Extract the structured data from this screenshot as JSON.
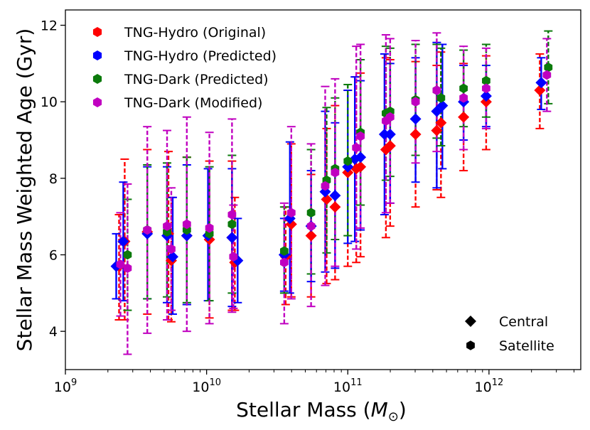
{
  "chart_data": {
    "type": "scatter",
    "title": "",
    "xlabel": "Stellar Mass (M☉)",
    "xlabel_main": "Stellar Mass (",
    "xlabel_symbol": "M",
    "xlabel_sub": "⊙",
    "xlabel_close": ")",
    "ylabel": "Stellar Mass Weighted Age (Gyr)",
    "xscale": "log",
    "xlim_log10": [
      9,
      12.65
    ],
    "ylim": [
      3,
      12.4
    ],
    "x_ticks": [
      {
        "exp": 9,
        "base": "10",
        "power": "9"
      },
      {
        "exp": 10,
        "base": "10",
        "power": "10"
      },
      {
        "exp": 11,
        "base": "10",
        "power": "11"
      },
      {
        "exp": 12,
        "base": "10",
        "power": "12"
      }
    ],
    "y_ticks": [
      {
        "value": 4,
        "label": "4"
      },
      {
        "value": 6,
        "label": "6"
      },
      {
        "value": 8,
        "label": "8"
      },
      {
        "value": 10,
        "label": "10"
      },
      {
        "value": 12,
        "label": "12"
      }
    ],
    "legend_position": "upper-left",
    "marker_legend_position": "lower-right",
    "series": [
      {
        "name": "TNG-Hydro (Original)",
        "color": "#ff0000",
        "dashed_errors": true,
        "points": [
          {
            "logm": 9.38,
            "y": 5.7,
            "lo": 4.3,
            "hi": 7.05,
            "m": "d"
          },
          {
            "logm": 9.42,
            "y": 6.35,
            "lo": 4.3,
            "hi": 8.5,
            "m": "d"
          },
          {
            "logm": 9.58,
            "y": 6.6,
            "lo": 4.45,
            "hi": 8.75,
            "m": "d"
          },
          {
            "logm": 9.73,
            "y": 6.55,
            "lo": 4.3,
            "hi": 8.7,
            "m": "d"
          },
          {
            "logm": 9.75,
            "y": 5.85,
            "lo": 4.25,
            "hi": 7.5,
            "m": "d"
          },
          {
            "logm": 9.86,
            "y": 6.5,
            "lo": 4.7,
            "hi": 8.55,
            "m": "d"
          },
          {
            "logm": 10.02,
            "y": 6.4,
            "lo": 4.35,
            "hi": 8.45,
            "m": "d"
          },
          {
            "logm": 10.18,
            "y": 6.45,
            "lo": 4.55,
            "hi": 8.45,
            "m": "d"
          },
          {
            "logm": 10.2,
            "y": 5.8,
            "lo": 4.55,
            "hi": 7.5,
            "m": "d"
          },
          {
            "logm": 10.56,
            "y": 5.95,
            "lo": 4.7,
            "hi": 7.25,
            "m": "d"
          },
          {
            "logm": 10.6,
            "y": 6.8,
            "lo": 4.9,
            "hi": 8.9,
            "m": "d"
          },
          {
            "logm": 10.74,
            "y": 6.5,
            "lo": 4.9,
            "hi": 8.1,
            "m": "d"
          },
          {
            "logm": 10.85,
            "y": 7.45,
            "lo": 5.25,
            "hi": 9.3,
            "m": "d"
          },
          {
            "logm": 10.91,
            "y": 7.25,
            "lo": 5.35,
            "hi": 9.9,
            "m": "d"
          },
          {
            "logm": 11.0,
            "y": 8.15,
            "lo": 5.7,
            "hi": 10.3,
            "m": "d"
          },
          {
            "logm": 11.06,
            "y": 8.25,
            "lo": 5.8,
            "hi": 10.65,
            "m": "d"
          },
          {
            "logm": 11.09,
            "y": 8.3,
            "lo": 5.95,
            "hi": 10.75,
            "m": "d"
          },
          {
            "logm": 11.27,
            "y": 8.75,
            "lo": 6.45,
            "hi": 11.15,
            "m": "d"
          },
          {
            "logm": 11.3,
            "y": 8.85,
            "lo": 6.75,
            "hi": 11.1,
            "m": "d"
          },
          {
            "logm": 11.48,
            "y": 9.15,
            "lo": 7.25,
            "hi": 11.05,
            "m": "d"
          },
          {
            "logm": 11.63,
            "y": 9.25,
            "lo": 7.7,
            "hi": 10.95,
            "m": "d"
          },
          {
            "logm": 11.66,
            "y": 9.45,
            "lo": 7.5,
            "hi": 11.3,
            "m": "d"
          },
          {
            "logm": 11.82,
            "y": 9.6,
            "lo": 8.2,
            "hi": 11.0,
            "m": "d"
          },
          {
            "logm": 11.98,
            "y": 10.0,
            "lo": 8.75,
            "hi": 11.2,
            "m": "d"
          },
          {
            "logm": 12.36,
            "y": 10.3,
            "lo": 9.3,
            "hi": 11.25,
            "m": "d"
          }
        ]
      },
      {
        "name": "TNG-Hydro (Predicted)",
        "color": "#0000ff",
        "dashed_errors": false,
        "points": [
          {
            "logm": 9.36,
            "y": 5.7,
            "lo": 4.85,
            "hi": 6.55,
            "m": "d"
          },
          {
            "logm": 9.41,
            "y": 6.35,
            "lo": 4.8,
            "hi": 7.9,
            "m": "d"
          },
          {
            "logm": 9.58,
            "y": 6.55,
            "lo": 4.85,
            "hi": 8.3,
            "m": "d"
          },
          {
            "logm": 9.72,
            "y": 6.5,
            "lo": 4.75,
            "hi": 8.3,
            "m": "d"
          },
          {
            "logm": 9.76,
            "y": 5.95,
            "lo": 4.45,
            "hi": 7.5,
            "m": "d"
          },
          {
            "logm": 9.86,
            "y": 6.5,
            "lo": 4.7,
            "hi": 8.35,
            "m": "d"
          },
          {
            "logm": 10.01,
            "y": 6.5,
            "lo": 4.8,
            "hi": 8.25,
            "m": "d"
          },
          {
            "logm": 10.18,
            "y": 6.45,
            "lo": 4.65,
            "hi": 8.25,
            "m": "d"
          },
          {
            "logm": 10.22,
            "y": 5.85,
            "lo": 4.75,
            "hi": 6.95,
            "m": "d"
          },
          {
            "logm": 10.55,
            "y": 6.0,
            "lo": 5.05,
            "hi": 6.95,
            "m": "d"
          },
          {
            "logm": 10.59,
            "y": 6.95,
            "lo": 5.0,
            "hi": 8.95,
            "m": "d"
          },
          {
            "logm": 10.74,
            "y": 6.75,
            "lo": 5.3,
            "hi": 8.2,
            "m": "d"
          },
          {
            "logm": 10.84,
            "y": 7.65,
            "lo": 5.55,
            "hi": 9.75,
            "m": "d"
          },
          {
            "logm": 10.91,
            "y": 7.55,
            "lo": 5.65,
            "hi": 9.45,
            "m": "d"
          },
          {
            "logm": 11.0,
            "y": 8.3,
            "lo": 6.3,
            "hi": 10.3,
            "m": "d"
          },
          {
            "logm": 11.05,
            "y": 8.5,
            "lo": 6.35,
            "hi": 10.65,
            "m": "d"
          },
          {
            "logm": 11.09,
            "y": 8.55,
            "lo": 6.65,
            "hi": 10.55,
            "m": "d"
          },
          {
            "logm": 11.26,
            "y": 9.15,
            "lo": 7.05,
            "hi": 11.25,
            "m": "d"
          },
          {
            "logm": 11.3,
            "y": 9.15,
            "lo": 7.35,
            "hi": 11.0,
            "m": "d"
          },
          {
            "logm": 11.48,
            "y": 9.55,
            "lo": 7.9,
            "hi": 11.15,
            "m": "d"
          },
          {
            "logm": 11.63,
            "y": 9.75,
            "lo": 7.75,
            "hi": 11.55,
            "m": "d"
          },
          {
            "logm": 11.67,
            "y": 9.9,
            "lo": 8.25,
            "hi": 11.5,
            "m": "d"
          },
          {
            "logm": 11.82,
            "y": 10.0,
            "lo": 9.0,
            "hi": 10.95,
            "m": "d"
          },
          {
            "logm": 11.98,
            "y": 10.15,
            "lo": 9.35,
            "hi": 10.95,
            "m": "d"
          },
          {
            "logm": 12.37,
            "y": 10.5,
            "lo": 9.8,
            "hi": 11.15,
            "m": "d"
          }
        ]
      },
      {
        "name": "TNG-Dark (Predicted)",
        "color": "#0b7a0b",
        "dashed_errors": true,
        "points": [
          {
            "logm": 9.44,
            "y": 6.0,
            "lo": 4.55,
            "hi": 7.45,
            "m": "h"
          },
          {
            "logm": 9.58,
            "y": 6.65,
            "lo": 4.85,
            "hi": 8.35,
            "m": "h"
          },
          {
            "logm": 9.72,
            "y": 6.6,
            "lo": 4.9,
            "hi": 8.4,
            "m": "h"
          },
          {
            "logm": 9.86,
            "y": 6.65,
            "lo": 4.75,
            "hi": 8.55,
            "m": "h"
          },
          {
            "logm": 10.02,
            "y": 6.55,
            "lo": 4.8,
            "hi": 8.3,
            "m": "h"
          },
          {
            "logm": 10.18,
            "y": 6.8,
            "lo": 5.0,
            "hi": 8.6,
            "m": "h"
          },
          {
            "logm": 10.55,
            "y": 6.1,
            "lo": 5.0,
            "hi": 7.25,
            "m": "h"
          },
          {
            "logm": 10.74,
            "y": 7.1,
            "lo": 5.5,
            "hi": 8.75,
            "m": "h"
          },
          {
            "logm": 10.85,
            "y": 7.95,
            "lo": 6.05,
            "hi": 9.85,
            "m": "h"
          },
          {
            "logm": 10.91,
            "y": 8.25,
            "lo": 6.4,
            "hi": 10.1,
            "m": "h"
          },
          {
            "logm": 11.0,
            "y": 8.45,
            "lo": 6.5,
            "hi": 10.45,
            "m": "h"
          },
          {
            "logm": 11.09,
            "y": 9.2,
            "lo": 7.3,
            "hi": 11.1,
            "m": "h"
          },
          {
            "logm": 11.27,
            "y": 9.7,
            "lo": 7.95,
            "hi": 11.45,
            "m": "h"
          },
          {
            "logm": 11.3,
            "y": 9.75,
            "lo": 8.05,
            "hi": 11.4,
            "m": "h"
          },
          {
            "logm": 11.48,
            "y": 10.05,
            "lo": 8.6,
            "hi": 11.5,
            "m": "h"
          },
          {
            "logm": 11.63,
            "y": 10.3,
            "lo": 9.05,
            "hi": 11.5,
            "m": "h"
          },
          {
            "logm": 11.66,
            "y": 10.1,
            "lo": 8.85,
            "hi": 11.4,
            "m": "h"
          },
          {
            "logm": 11.82,
            "y": 10.35,
            "lo": 9.35,
            "hi": 11.35,
            "m": "h"
          },
          {
            "logm": 11.98,
            "y": 10.55,
            "lo": 9.6,
            "hi": 11.5,
            "m": "h"
          },
          {
            "logm": 12.42,
            "y": 10.9,
            "lo": 9.95,
            "hi": 11.85,
            "m": "h"
          }
        ]
      },
      {
        "name": "TNG-Dark (Modified)",
        "color": "#c000c0",
        "dashed_errors": true,
        "points": [
          {
            "logm": 9.39,
            "y": 5.75,
            "lo": 4.4,
            "hi": 7.1,
            "m": "h"
          },
          {
            "logm": 9.44,
            "y": 5.65,
            "lo": 3.4,
            "hi": 7.85,
            "m": "h"
          },
          {
            "logm": 9.58,
            "y": 6.65,
            "lo": 3.95,
            "hi": 9.35,
            "m": "h"
          },
          {
            "logm": 9.72,
            "y": 6.75,
            "lo": 4.3,
            "hi": 9.25,
            "m": "h"
          },
          {
            "logm": 9.75,
            "y": 6.15,
            "lo": 4.55,
            "hi": 7.75,
            "m": "h"
          },
          {
            "logm": 9.86,
            "y": 6.8,
            "lo": 4.0,
            "hi": 9.6,
            "m": "h"
          },
          {
            "logm": 10.02,
            "y": 6.7,
            "lo": 4.2,
            "hi": 9.2,
            "m": "h"
          },
          {
            "logm": 10.18,
            "y": 7.05,
            "lo": 4.5,
            "hi": 9.55,
            "m": "h"
          },
          {
            "logm": 10.19,
            "y": 5.95,
            "lo": 4.6,
            "hi": 7.3,
            "m": "h"
          },
          {
            "logm": 10.55,
            "y": 5.8,
            "lo": 4.2,
            "hi": 7.35,
            "m": "h"
          },
          {
            "logm": 10.6,
            "y": 7.1,
            "lo": 4.85,
            "hi": 9.35,
            "m": "h"
          },
          {
            "logm": 10.74,
            "y": 6.75,
            "lo": 4.65,
            "hi": 8.9,
            "m": "h"
          },
          {
            "logm": 10.84,
            "y": 7.8,
            "lo": 5.2,
            "hi": 10.4,
            "m": "h"
          },
          {
            "logm": 10.91,
            "y": 8.15,
            "lo": 5.7,
            "hi": 10.6,
            "m": "h"
          },
          {
            "logm": 11.06,
            "y": 8.8,
            "lo": 6.15,
            "hi": 11.45,
            "m": "h"
          },
          {
            "logm": 11.09,
            "y": 9.1,
            "lo": 6.7,
            "hi": 11.5,
            "m": "h"
          },
          {
            "logm": 11.27,
            "y": 9.5,
            "lo": 7.1,
            "hi": 11.75,
            "m": "h"
          },
          {
            "logm": 11.3,
            "y": 9.6,
            "lo": 7.35,
            "hi": 11.65,
            "m": "h"
          },
          {
            "logm": 11.48,
            "y": 10.0,
            "lo": 8.4,
            "hi": 11.6,
            "m": "h"
          },
          {
            "logm": 11.63,
            "y": 10.3,
            "lo": 8.7,
            "hi": 11.8,
            "m": "h"
          },
          {
            "logm": 11.82,
            "y": 10.1,
            "lo": 8.75,
            "hi": 11.45,
            "m": "h"
          },
          {
            "logm": 11.98,
            "y": 10.35,
            "lo": 9.3,
            "hi": 11.4,
            "m": "h"
          },
          {
            "logm": 12.41,
            "y": 10.7,
            "lo": 9.75,
            "hi": 11.65,
            "m": "h"
          }
        ]
      }
    ],
    "marker_legend": [
      {
        "label": "Central",
        "marker": "d",
        "color": "#000000"
      },
      {
        "label": "Satellite",
        "marker": "h",
        "color": "#000000"
      }
    ]
  }
}
